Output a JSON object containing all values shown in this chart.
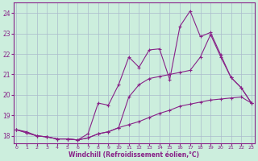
{
  "bg_color": "#cceedd",
  "grid_color": "#aabbcc",
  "line_color": "#882288",
  "xlabel": "Windchill (Refroidissement éolien,°C)",
  "ylabel_ticks": [
    18,
    19,
    20,
    21,
    22,
    23,
    24
  ],
  "xticks": [
    0,
    1,
    2,
    3,
    4,
    5,
    6,
    7,
    8,
    9,
    10,
    11,
    12,
    13,
    14,
    15,
    16,
    17,
    18,
    19,
    20,
    21,
    22,
    23
  ],
  "xlim": [
    -0.3,
    23.3
  ],
  "ylim": [
    17.65,
    24.5
  ],
  "series": [
    [
      18.3,
      18.2,
      18.0,
      17.95,
      17.85,
      17.85,
      17.8,
      17.9,
      18.1,
      18.2,
      18.4,
      18.55,
      18.7,
      18.9,
      19.1,
      19.25,
      19.45,
      19.55,
      19.65,
      19.75,
      19.8,
      19.85,
      19.9,
      19.6
    ],
    [
      18.3,
      18.15,
      18.0,
      17.95,
      17.85,
      17.85,
      17.8,
      18.1,
      19.6,
      19.5,
      20.5,
      21.85,
      21.35,
      22.2,
      22.25,
      20.75,
      23.35,
      24.1,
      22.85,
      23.05,
      21.95,
      20.85,
      20.35,
      19.6
    ],
    [
      18.3,
      18.15,
      18.0,
      17.95,
      17.85,
      17.85,
      17.8,
      17.9,
      18.1,
      18.2,
      18.4,
      19.9,
      20.5,
      20.8,
      20.9,
      21.0,
      21.1,
      21.2,
      21.85,
      22.95,
      21.85,
      20.85,
      20.35,
      19.6
    ]
  ]
}
